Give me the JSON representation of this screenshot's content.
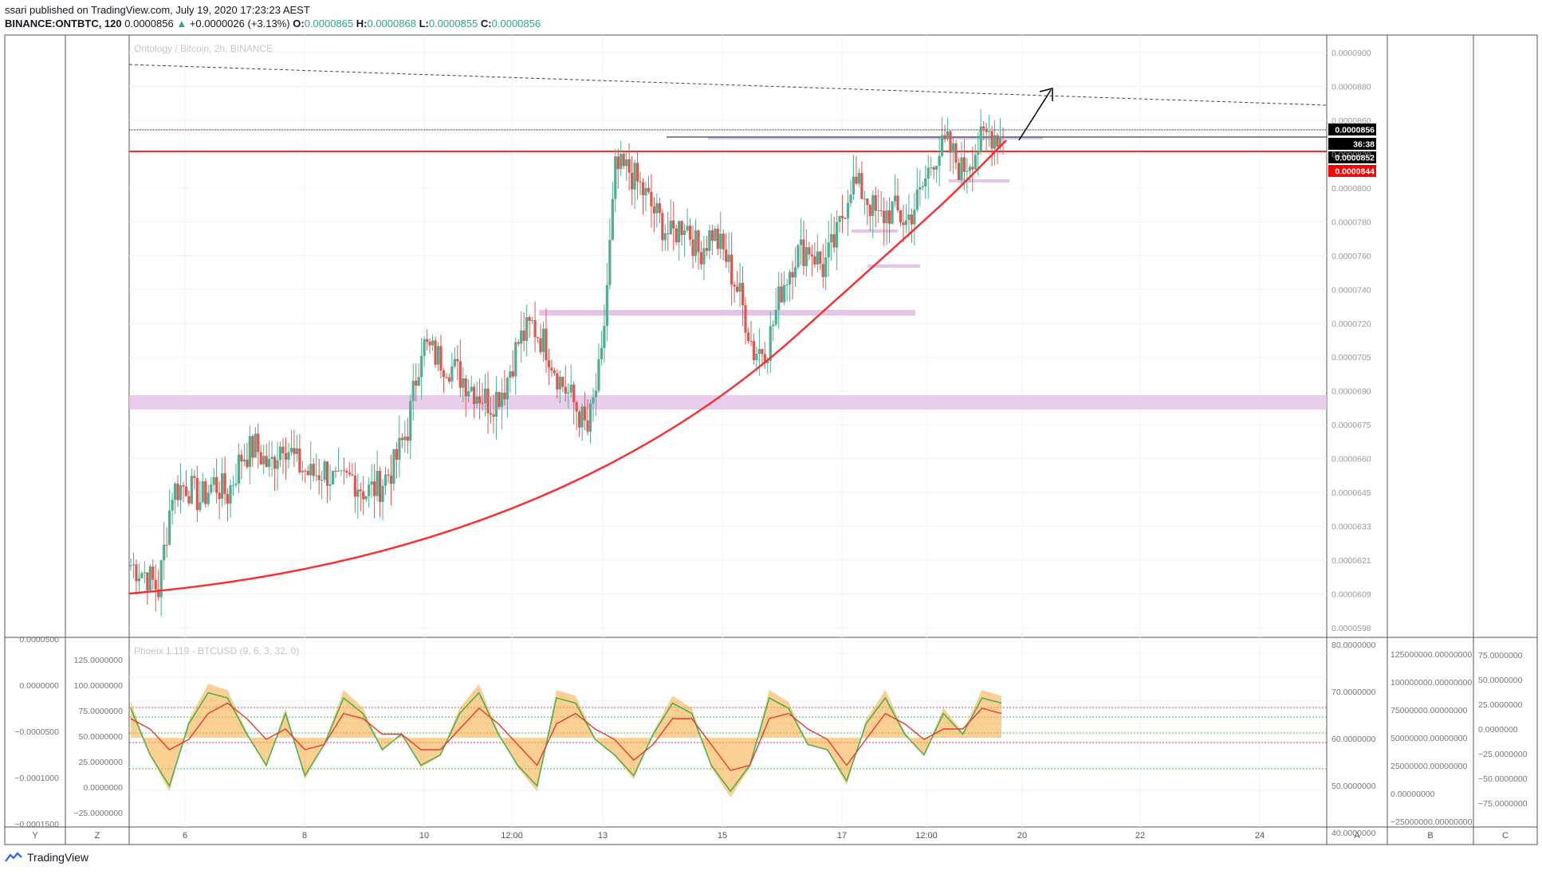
{
  "header": {
    "line1": "ssari published on TradingView.com, July 19, 2020 17:23:23 AEST",
    "symbol": "BINANCE:ONTBTC, 120",
    "last": "0.0000856",
    "change": "+0.0000026 (+3.13%)",
    "o_label": "O:",
    "o": "0.0000865",
    "h_label": "H:",
    "h": "0.0000868",
    "l_label": "L:",
    "l": "0.0000855",
    "c_label": "C:",
    "c": "0.0000856"
  },
  "chart_data": [
    {
      "type": "candlestick",
      "title": "Ontology / Bitcoin, 2h, BINANCE",
      "x_ticks": [
        "6",
        "8",
        "10",
        "12:00",
        "13",
        "15",
        "17",
        "12:00",
        "20",
        "22",
        "24"
      ],
      "y_ticks": [
        "0.0000900",
        "0.0000880",
        "0.0000860",
        "0.0000820",
        "0.0000800",
        "0.0000780",
        "0.0000760",
        "0.0000740",
        "0.0000720",
        "0.0000705",
        "0.0000690",
        "0.0000675",
        "0.0000660",
        "0.0000645",
        "0.0000633",
        "0.0000621",
        "0.0000609",
        "0.0000598"
      ],
      "price_labels": [
        {
          "text": "0.0000856",
          "color": "#000000"
        },
        {
          "text": "36:38",
          "color": "#000000"
        },
        {
          "text": "0.0000852",
          "color": "#000000"
        },
        {
          "text": "0.0000844",
          "color": "#ff0000"
        }
      ],
      "ylim": [
        5.98e-05,
        9e-05
      ],
      "price_path": [
        6.31e-05,
        6.27e-05,
        6.18e-05,
        6.7e-05,
        6.73e-05,
        6.65e-05,
        6.74e-05,
        6.68e-05,
        6.88e-05,
        6.93e-05,
        6.82e-05,
        6.97e-05,
        6.84e-05,
        6.78e-05,
        6.81e-05,
        6.72e-05,
        6.77e-05,
        6.69e-05,
        6.73e-05,
        6.83e-05,
        7.03e-05,
        7.47e-05,
        7.41e-05,
        7.36e-05,
        7.29e-05,
        7.22e-05,
        7.16e-05,
        7.25e-05,
        7.48e-05,
        7.57e-05,
        7.46e-05,
        7.28e-05,
        7.16e-05,
        7.01e-05,
        7.38e-05,
        8.38e-05,
        8.38e-05,
        8.27e-05,
        8.14e-05,
        8.03e-05,
        8.12e-05,
        7.95e-05,
        8.06e-05,
        7.92e-05,
        7.72e-05,
        7.43e-05,
        7.46e-05,
        7.76e-05,
        7.94e-05,
        7.98e-05,
        7.87e-05,
        8.03e-05,
        8.32e-05,
        8.26e-05,
        8.12e-05,
        8.18e-05,
        8.11e-05,
        8.25e-05,
        8.46e-05,
        8.51e-05,
        8.38e-05,
        8.49e-05,
        8.58e-05,
        8.56e-05
      ],
      "support_zones": [
        "0.0000705–0.0000712",
        "0.0000758"
      ],
      "horizontal_levels": [
        8.56e-05,
        8.52e-05,
        8.44e-05
      ]
    },
    {
      "type": "line",
      "title": "Phoeix 1.119 - BTCUSD (9, 6, 3, 32, 0)",
      "left_ticks": [
        "0.0000500",
        "0.0000000",
        "−0.0000500",
        "−0.0001000",
        "−0.0001500"
      ],
      "mid_left_ticks": [
        "125.0000000",
        "100.0000000",
        "75.0000000",
        "50.0000000",
        "25.0000000",
        "0.0000000",
        "−25.0000000"
      ],
      "right_ticks_1": [
        "80.0000000",
        "70.0000000",
        "60.0000000",
        "50.0000000",
        "40.0000000"
      ],
      "right_ticks_2": [
        "125000000.00000000",
        "100000000.00000000",
        "75000000.00000000",
        "50000000.00000000",
        "25000000.00000000",
        "0.00000000",
        "−25000000.00000000"
      ],
      "right_ticks_3": [
        "75.0000000",
        "50.0000000",
        "25.0000000",
        "0.0000000",
        "−25.0000000",
        "−50.0000000",
        "−75.0000000"
      ],
      "wave_green": [
        85,
        40,
        10,
        70,
        100,
        95,
        60,
        30,
        80,
        20,
        50,
        95,
        80,
        45,
        60,
        30,
        40,
        80,
        100,
        60,
        30,
        10,
        95,
        90,
        55,
        40,
        20,
        60,
        90,
        80,
        30,
        5,
        30,
        95,
        85,
        50,
        45,
        15,
        70,
        95,
        60,
        40,
        80,
        60,
        95,
        90
      ],
      "wave_red": [
        75,
        65,
        45,
        55,
        80,
        90,
        75,
        55,
        65,
        45,
        50,
        80,
        75,
        60,
        60,
        45,
        45,
        65,
        85,
        70,
        50,
        30,
        70,
        80,
        65,
        55,
        35,
        50,
        75,
        75,
        50,
        25,
        30,
        75,
        80,
        65,
        55,
        30,
        55,
        80,
        70,
        55,
        65,
        65,
        85,
        80
      ]
    }
  ],
  "axis_boxes": [
    "Y",
    "Z",
    "A",
    "B",
    "C"
  ],
  "footer": {
    "brand": "TradingView"
  },
  "colors": {
    "up": "#4caf91",
    "down": "#e0564f",
    "support": "#e6c4ea",
    "trend": "#ff2a2a",
    "band": "#f8b04a"
  }
}
